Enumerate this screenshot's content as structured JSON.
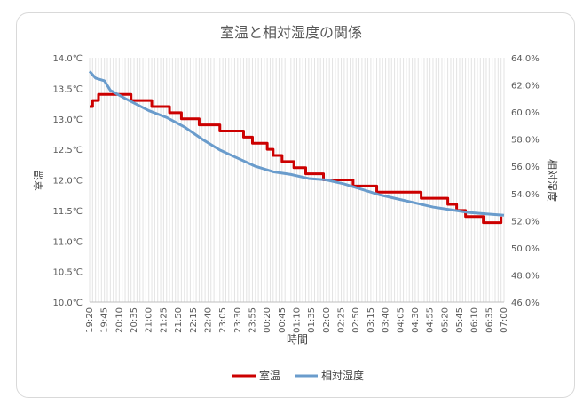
{
  "chart_data": {
    "type": "line",
    "title": "室温と相対湿度の関係",
    "xlabel": "時間",
    "ylabel_left": "室温",
    "ylabel_right": "相対湿度",
    "ylim_left": [
      10.0,
      14.0
    ],
    "ylim_right": [
      46.0,
      64.0
    ],
    "grid": "vertical-per-sample",
    "legend_position": "bottom",
    "left_ticks": [
      "14.0℃",
      "13.5℃",
      "13.0℃",
      "12.5℃",
      "12.0℃",
      "11.5℃",
      "11.0℃",
      "10.5℃",
      "10.0℃"
    ],
    "right_ticks": [
      "64.0%",
      "62.0%",
      "60.0%",
      "58.0%",
      "56.0%",
      "54.0%",
      "52.0%",
      "50.0%",
      "48.0%",
      "46.0%"
    ],
    "x_tick_labels": [
      "19:20",
      "19:45",
      "20:10",
      "20:35",
      "21:00",
      "21:25",
      "21:50",
      "22:15",
      "22:40",
      "23:05",
      "23:30",
      "23:55",
      "00:20",
      "00:45",
      "01:10",
      "01:35",
      "02:00",
      "02:25",
      "02:50",
      "03:15",
      "03:40",
      "04:05",
      "04:30",
      "04:55",
      "05:20",
      "05:45",
      "06:10",
      "06:35",
      "07:00"
    ],
    "sample_interval_minutes": 5,
    "series": [
      {
        "name": "室温",
        "color": "#cc0000",
        "axis": "left",
        "points": [
          [
            "19:20",
            13.2
          ],
          [
            "19:25",
            13.3
          ],
          [
            "19:35",
            13.4
          ],
          [
            "20:30",
            13.3
          ],
          [
            "20:40",
            13.3
          ],
          [
            "21:05",
            13.2
          ],
          [
            "21:20",
            13.2
          ],
          [
            "21:25",
            13.2
          ],
          [
            "21:35",
            13.1
          ],
          [
            "21:55",
            13.0
          ],
          [
            "22:25",
            12.9
          ],
          [
            "23:00",
            12.8
          ],
          [
            "23:40",
            12.7
          ],
          [
            "23:55",
            12.6
          ],
          [
            "00:20",
            12.5
          ],
          [
            "00:30",
            12.4
          ],
          [
            "00:45",
            12.3
          ],
          [
            "01:05",
            12.2
          ],
          [
            "01:25",
            12.1
          ],
          [
            "01:55",
            12.0
          ],
          [
            "02:45",
            11.9
          ],
          [
            "03:25",
            11.8
          ],
          [
            "04:40",
            11.7
          ],
          [
            "05:25",
            11.6
          ],
          [
            "05:40",
            11.5
          ],
          [
            "05:55",
            11.4
          ],
          [
            "06:25",
            11.3
          ],
          [
            "06:55",
            11.4
          ]
        ]
      },
      {
        "name": "相対湿度",
        "color": "#6a9ccc",
        "axis": "right",
        "points": [
          [
            "19:20",
            63.0
          ],
          [
            "19:30",
            62.5
          ],
          [
            "19:45",
            62.3
          ],
          [
            "19:55",
            61.6
          ],
          [
            "20:20",
            61.0
          ],
          [
            "21:00",
            60.1
          ],
          [
            "21:30",
            59.6
          ],
          [
            "22:00",
            58.9
          ],
          [
            "22:30",
            58.0
          ],
          [
            "23:00",
            57.2
          ],
          [
            "23:30",
            56.6
          ],
          [
            "00:00",
            56.0
          ],
          [
            "00:30",
            55.6
          ],
          [
            "01:00",
            55.4
          ],
          [
            "01:30",
            55.1
          ],
          [
            "02:00",
            55.0
          ],
          [
            "02:30",
            54.7
          ],
          [
            "03:00",
            54.3
          ],
          [
            "03:30",
            53.9
          ],
          [
            "04:00",
            53.6
          ],
          [
            "04:30",
            53.3
          ],
          [
            "05:00",
            53.0
          ],
          [
            "05:30",
            52.8
          ],
          [
            "06:00",
            52.6
          ],
          [
            "06:30",
            52.5
          ],
          [
            "07:00",
            52.4
          ]
        ]
      }
    ]
  }
}
